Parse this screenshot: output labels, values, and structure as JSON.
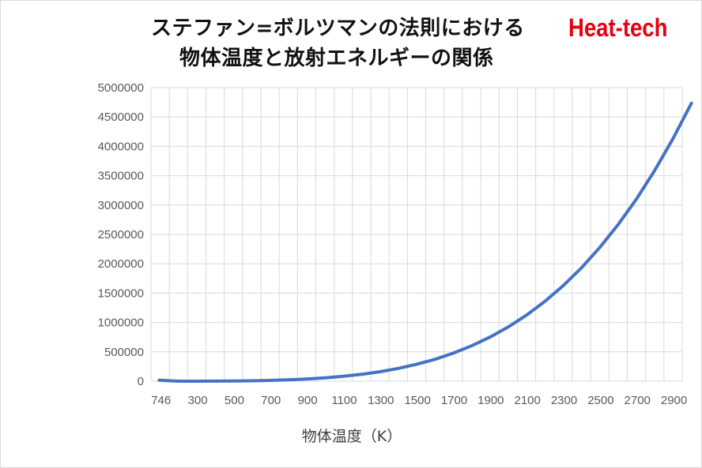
{
  "colors": {
    "line": "#4472c4",
    "grid": "#d9d9d9",
    "brand": "#e60012",
    "tick_text": "#595959"
  },
  "chart_data": {
    "type": "line",
    "title_lines": [
      "ステファン=ボルツマンの法則における",
      "物体温度と放射エネルギーの関係"
    ],
    "brand_label": "Heat-tech",
    "xlabel": "物体温度（K）",
    "ylabel": "",
    "grid": true,
    "legend": "none",
    "ylim": [
      0,
      5000000
    ],
    "y_ticks": [
      0,
      500000,
      1000000,
      1500000,
      2000000,
      2500000,
      3000000,
      3500000,
      4000000,
      4500000,
      5000000
    ],
    "x_ticks": [
      "746",
      "300",
      "500",
      "700",
      "900",
      "1100",
      "1300",
      "1500",
      "1700",
      "1900",
      "2100",
      "2300",
      "2500",
      "2700",
      "2900"
    ],
    "x": [
      746,
      200,
      300,
      400,
      500,
      600,
      700,
      800,
      900,
      1000,
      1100,
      1200,
      1300,
      1400,
      1500,
      1600,
      1700,
      1800,
      1900,
      2000,
      2100,
      2200,
      2300,
      2400,
      2500,
      2600,
      2700,
      2800,
      2900,
      3000
    ],
    "series": [
      {
        "values": [
          17500,
          91,
          459,
          1452,
          3544,
          7348,
          13613,
          23224,
          37201,
          56700,
          83015,
          117573,
          161943,
          217813,
          287044,
          372634,
          476708,
          601549,
          749570,
          923328,
          1125493,
          1358911,
          1626521,
          1931405,
          2276813,
          2666107,
          3102788,
          3590453,
          4132837,
          4733856
        ]
      }
    ]
  }
}
